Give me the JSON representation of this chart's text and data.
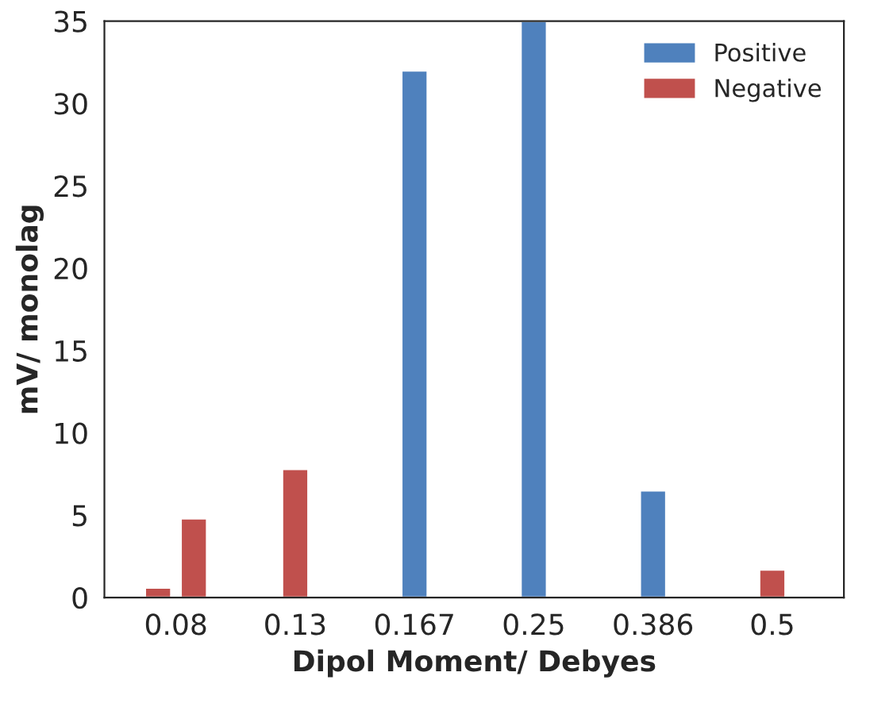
{
  "chart_data": {
    "type": "bar",
    "xlabel": "Dipol Moment/ Debyes",
    "ylabel": "mV/ monolag",
    "categories": [
      "0.08",
      "0.13",
      "0.167",
      "0.25",
      "0.386",
      "0.5"
    ],
    "series": [
      {
        "color": "#c0504d",
        "values": [
          0.6,
          null,
          null,
          null,
          null,
          null
        ]
      },
      {
        "name": "Positive",
        "color": "#4f81bd",
        "values": [
          null,
          null,
          32,
          35,
          6.5,
          null
        ]
      },
      {
        "name": "Negative",
        "color": "#c0504d",
        "values": [
          4.8,
          7.8,
          null,
          null,
          null,
          1.7
        ]
      }
    ],
    "ylim": [
      0,
      35
    ],
    "yticks": [
      0,
      5,
      10,
      15,
      20,
      25,
      30,
      35
    ],
    "grid": false,
    "legend": "top right"
  }
}
